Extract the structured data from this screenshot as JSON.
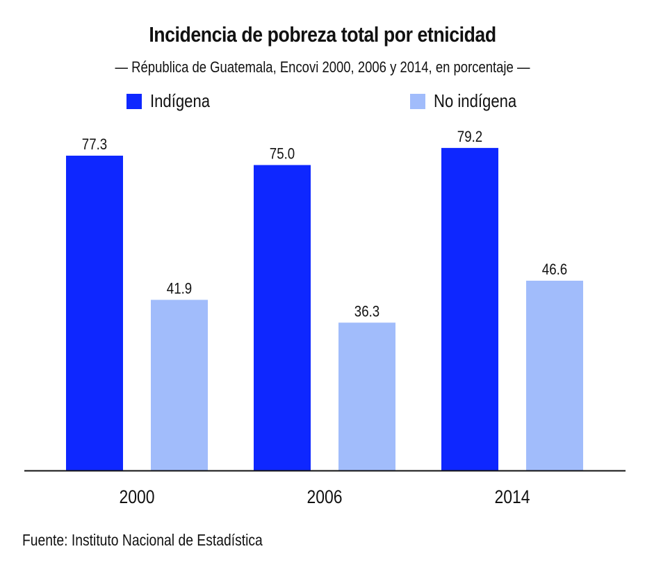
{
  "chart_data": {
    "type": "bar",
    "title": "Incidencia de pobreza total por etnicidad",
    "subtitle": "— Républica de Guatemala, Encovi 2000, 2006 y 2014, en porcentaje —",
    "categories": [
      "2000",
      "2006",
      "2014"
    ],
    "series": [
      {
        "name": "Indígena",
        "color": "#0e27ff",
        "values": [
          77.3,
          75.0,
          79.2
        ],
        "labels": [
          "77.3",
          "75.0",
          "79.2"
        ]
      },
      {
        "name": "No indígena",
        "color": "#a1bcfb",
        "values": [
          41.9,
          36.3,
          46.6
        ],
        "labels": [
          "41.9",
          "36.3",
          "46.6"
        ]
      }
    ],
    "xlabel": "",
    "ylabel": "",
    "ylim": [
      0,
      80
    ],
    "grid": false,
    "legend": "top",
    "source": "Fuente: Instituto Nacional de Estadística"
  }
}
